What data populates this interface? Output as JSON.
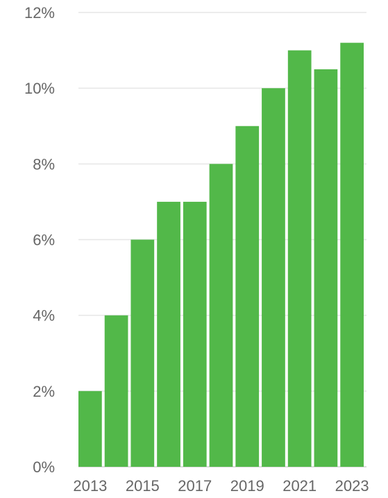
{
  "chart_data": {
    "type": "bar",
    "categories": [
      "2013",
      "2014",
      "2015",
      "2016",
      "2017",
      "2018",
      "2019",
      "2020",
      "2021",
      "2022",
      "2023"
    ],
    "values": [
      2.0,
      4.0,
      6.0,
      7.0,
      7.0,
      8.0,
      9.0,
      10.0,
      11.0,
      10.5,
      11.2
    ],
    "x_tick_labels": [
      "2013",
      "2015",
      "2017",
      "2019",
      "2021",
      "2023"
    ],
    "y_ticks": [
      0,
      2,
      4,
      6,
      8,
      10,
      12
    ],
    "y_tick_labels": [
      "0%",
      "2%",
      "4%",
      "6%",
      "8%",
      "10%",
      "12%"
    ],
    "ylim": [
      0,
      12
    ],
    "grid": true,
    "legend": "none",
    "bar_color": "#52b849",
    "title": "",
    "xlabel": "",
    "ylabel": ""
  }
}
